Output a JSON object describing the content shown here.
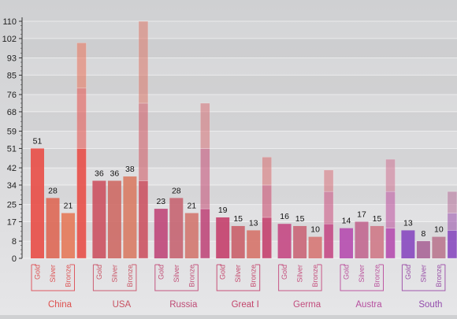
{
  "chart_data": {
    "type": "bar",
    "subtype": "grouped-with-stacked-total",
    "title": "",
    "xlabel": "",
    "ylabel": "",
    "ylim": [
      0,
      110
    ],
    "yticks": [
      0,
      8,
      17,
      25,
      34,
      42,
      51,
      59,
      68,
      76,
      85,
      93,
      102,
      110
    ],
    "grid": true,
    "legend": "none",
    "medal_labels": [
      "Gold",
      "Silver",
      "Bronze"
    ],
    "categories": [
      "China",
      "USA",
      "Russia",
      "Great I",
      "Germa",
      "Austra",
      "South"
    ],
    "series": [
      {
        "name": "Gold",
        "values": [
          51,
          36,
          23,
          19,
          16,
          14,
          13
        ]
      },
      {
        "name": "Silver",
        "values": [
          28,
          36,
          28,
          15,
          15,
          17,
          8
        ]
      },
      {
        "name": "Bronze",
        "values": [
          21,
          38,
          21,
          13,
          10,
          15,
          10
        ]
      }
    ],
    "colors": [
      "#e8504a",
      "#cc5564",
      "#c04b7c",
      "#c5436f",
      "#c54c86",
      "#b64fb0",
      "#8a4cc0"
    ]
  }
}
